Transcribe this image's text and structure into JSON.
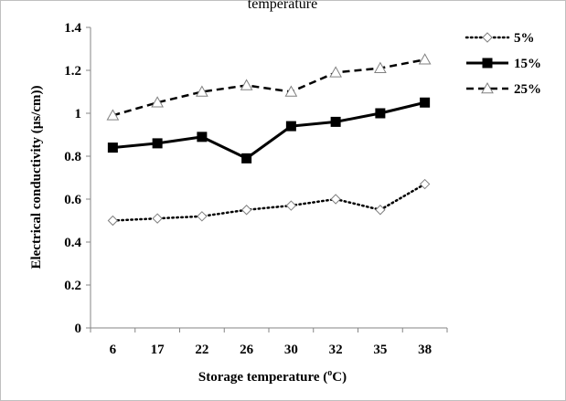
{
  "chart_data": {
    "type": "line",
    "title": "temperature",
    "xlabel": "Storage temperature (",
    "xlabel_sup": "o",
    "xlabel_suffix": "C)",
    "ylabel": "Electrical conductivity (µs/cm))",
    "categories": [
      "6",
      "17",
      "22",
      "26",
      "30",
      "32",
      "35",
      "38"
    ],
    "ylim": [
      0,
      1.4
    ],
    "yticks": [
      "0",
      "0.2",
      "0.4",
      "0.6",
      "0.8",
      "1",
      "1.2",
      "1.4"
    ],
    "grid": false,
    "legend_position": "top-right",
    "series": [
      {
        "name": "5%",
        "values": [
          0.5,
          0.51,
          0.52,
          0.55,
          0.57,
          0.6,
          0.55,
          0.67
        ],
        "line_style": "dotted",
        "marker": "diamond-open"
      },
      {
        "name": "15%",
        "values": [
          0.84,
          0.86,
          0.89,
          0.79,
          0.94,
          0.96,
          1.0,
          1.05
        ],
        "line_style": "solid",
        "marker": "square-filled"
      },
      {
        "name": "25%",
        "values": [
          0.99,
          1.05,
          1.1,
          1.13,
          1.1,
          1.19,
          1.21,
          1.25
        ],
        "line_style": "dashed",
        "marker": "triangle-open"
      }
    ]
  }
}
